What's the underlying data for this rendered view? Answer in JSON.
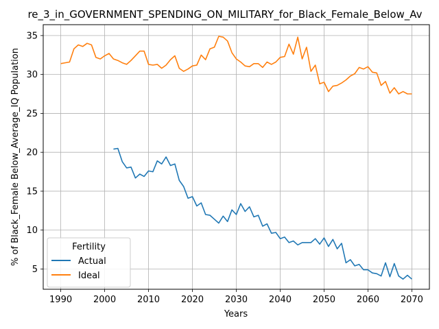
{
  "chart_data": {
    "type": "line",
    "title": "re_3_in_GOVERNMENT_SPENDING_ON_MILITARY_for_Black_Female_Below_Av",
    "xlabel": "Years",
    "ylabel": "% of Black_Female Below_Average_IQ Population",
    "xlim": [
      1986,
      2074
    ],
    "ylim": [
      2.4,
      36.4
    ],
    "x_ticks": [
      1990,
      2000,
      2010,
      2020,
      2030,
      2040,
      2050,
      2060,
      2070
    ],
    "y_ticks": [
      5,
      10,
      15,
      20,
      25,
      30,
      35
    ],
    "grid": true,
    "legend": {
      "title": "Fertility",
      "placement": "lower-left"
    },
    "series": [
      {
        "name": "Actual",
        "color": "#1f77b4",
        "x": [
          2002,
          2003,
          2004,
          2005,
          2006,
          2007,
          2008,
          2009,
          2010,
          2011,
          2012,
          2013,
          2014,
          2015,
          2016,
          2017,
          2018,
          2019,
          2020,
          2021,
          2022,
          2023,
          2024,
          2025,
          2026,
          2027,
          2028,
          2029,
          2030,
          2031,
          2032,
          2033,
          2034,
          2035,
          2036,
          2037,
          2038,
          2039,
          2040,
          2041,
          2042,
          2043,
          2044,
          2045,
          2046,
          2047,
          2048,
          2049,
          2050,
          2051,
          2052,
          2053,
          2054,
          2055,
          2056,
          2057,
          2058,
          2059,
          2060,
          2061,
          2062,
          2063,
          2064,
          2065,
          2066,
          2067,
          2068,
          2069,
          2070
        ],
        "values": [
          20.4,
          20.5,
          18.8,
          18.0,
          18.1,
          16.7,
          17.2,
          16.9,
          17.6,
          17.5,
          18.9,
          18.5,
          19.4,
          18.3,
          18.5,
          16.4,
          15.6,
          14.1,
          14.3,
          13.1,
          13.5,
          12.0,
          11.9,
          11.4,
          10.9,
          11.8,
          11.1,
          12.6,
          12.0,
          13.4,
          12.4,
          13.0,
          11.7,
          11.9,
          10.5,
          10.8,
          9.6,
          9.7,
          8.9,
          9.1,
          8.4,
          8.6,
          8.1,
          8.4,
          8.4,
          8.4,
          8.9,
          8.2,
          9.0,
          7.9,
          8.8,
          7.6,
          8.3,
          5.8,
          6.2,
          5.4,
          5.6,
          4.9,
          4.9,
          4.5,
          4.4,
          4.1,
          5.8,
          4.0,
          5.7,
          4.1,
          3.7,
          4.2,
          3.7
        ]
      },
      {
        "name": "Ideal",
        "color": "#ff7f0e",
        "x": [
          1990,
          1991,
          1992,
          1993,
          1994,
          1995,
          1996,
          1997,
          1998,
          1999,
          2000,
          2001,
          2002,
          2003,
          2004,
          2005,
          2006,
          2007,
          2008,
          2009,
          2010,
          2011,
          2012,
          2013,
          2014,
          2015,
          2016,
          2017,
          2018,
          2019,
          2020,
          2021,
          2022,
          2023,
          2024,
          2025,
          2026,
          2027,
          2028,
          2029,
          2030,
          2031,
          2032,
          2033,
          2034,
          2035,
          2036,
          2037,
          2038,
          2039,
          2040,
          2041,
          2042,
          2043,
          2044,
          2045,
          2046,
          2047,
          2048,
          2049,
          2050,
          2051,
          2052,
          2053,
          2054,
          2055,
          2056,
          2057,
          2058,
          2059,
          2060,
          2061,
          2062,
          2063,
          2064,
          2065,
          2066,
          2067,
          2068,
          2069,
          2070
        ],
        "values": [
          31.4,
          31.5,
          31.6,
          33.3,
          33.8,
          33.6,
          34.0,
          33.8,
          32.2,
          32.0,
          32.4,
          32.7,
          32.0,
          31.8,
          31.5,
          31.3,
          31.8,
          32.4,
          33.0,
          33.0,
          31.3,
          31.2,
          31.3,
          30.8,
          31.2,
          31.9,
          32.4,
          30.8,
          30.4,
          30.7,
          31.1,
          31.2,
          32.5,
          31.9,
          33.3,
          33.5,
          34.9,
          34.8,
          34.3,
          32.8,
          32.0,
          31.6,
          31.1,
          31.0,
          31.4,
          31.4,
          30.9,
          31.6,
          31.3,
          31.6,
          32.2,
          32.3,
          33.9,
          32.6,
          34.8,
          32.0,
          33.5,
          30.4,
          31.2,
          28.8,
          29.0,
          27.8,
          28.5,
          28.6,
          28.9,
          29.3,
          29.8,
          30.1,
          30.9,
          30.7,
          31.0,
          30.3,
          30.2,
          28.6,
          29.1,
          27.6,
          28.3,
          27.5,
          27.8,
          27.5,
          27.5
        ]
      }
    ]
  }
}
